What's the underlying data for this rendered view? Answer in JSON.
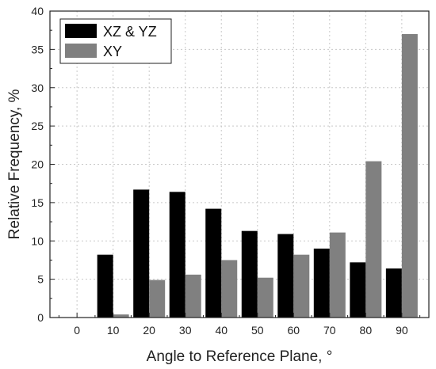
{
  "chart_data": {
    "type": "bar",
    "xlabel": "Angle to Reference Plane, °",
    "ylabel": "Relative Frequency, %",
    "categories": [
      "0",
      "10",
      "20",
      "30",
      "40",
      "50",
      "60",
      "70",
      "80",
      "90"
    ],
    "ylim": [
      0,
      40
    ],
    "yticks": [
      "0",
      "5",
      "10",
      "15",
      "20",
      "25",
      "30",
      "35",
      "40"
    ],
    "grid": true,
    "legend_position": "top-left",
    "series": [
      {
        "name": "XZ & YZ",
        "color": "#000000",
        "values": [
          0,
          8.2,
          16.7,
          16.4,
          14.2,
          11.3,
          10.9,
          9.0,
          7.2,
          6.4
        ]
      },
      {
        "name": "XY",
        "color": "#808080",
        "values": [
          0,
          0.4,
          4.9,
          5.6,
          7.5,
          5.2,
          8.2,
          11.1,
          20.4,
          37.0
        ]
      }
    ]
  }
}
